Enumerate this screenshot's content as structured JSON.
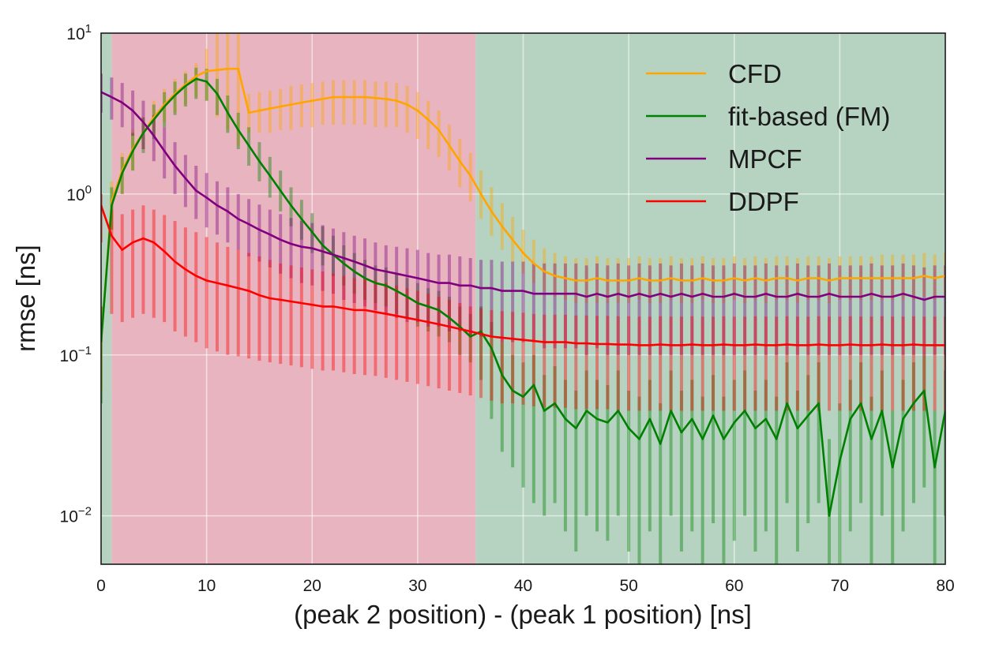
{
  "chart_data": {
    "type": "line",
    "title": "",
    "xlabel": "(peak 2 position) - (peak 1 position) [ns]",
    "ylabel": "rmse [ns]",
    "xscale": "linear",
    "yscale": "log",
    "xlim": [
      0,
      80
    ],
    "ylim": [
      0.005,
      10
    ],
    "grid": true,
    "x_ticks": [
      0,
      10,
      20,
      30,
      40,
      50,
      60,
      70,
      80
    ],
    "y_ticks": [
      {
        "value": 0.01,
        "base": "10",
        "exp": "−2"
      },
      {
        "value": 0.1,
        "base": "10",
        "exp": "−1"
      },
      {
        "value": 1,
        "base": "10",
        "exp": "0"
      },
      {
        "value": 10,
        "base": "10",
        "exp": "1"
      }
    ],
    "regions": [
      {
        "name": "pile-up-region",
        "x_start": 1,
        "x_end": 35.5,
        "color": "#e8b4bf"
      },
      {
        "name": "separated-region",
        "x_start": 35.5,
        "x_end": 80,
        "color": "#b5d3c0"
      },
      {
        "name": "initial-region",
        "x_start": 0,
        "x_end": 1,
        "color": "#b5d3c0"
      }
    ],
    "legend_position": "top-right",
    "legend": [
      "CFD",
      "fit-based (FM)",
      "MPCF",
      "DDPF"
    ],
    "x": [
      0,
      1,
      2,
      3,
      4,
      5,
      6,
      7,
      8,
      9,
      10,
      11,
      12,
      13,
      14,
      15,
      16,
      17,
      18,
      19,
      20,
      21,
      22,
      23,
      24,
      25,
      26,
      27,
      28,
      29,
      30,
      31,
      32,
      33,
      34,
      35,
      36,
      37,
      38,
      39,
      40,
      41,
      42,
      43,
      44,
      45,
      46,
      47,
      48,
      49,
      50,
      51,
      52,
      53,
      54,
      55,
      56,
      57,
      58,
      59,
      60,
      61,
      62,
      63,
      64,
      65,
      66,
      67,
      68,
      69,
      70,
      71,
      72,
      73,
      74,
      75,
      76,
      77,
      78,
      79,
      80
    ],
    "series": [
      {
        "name": "CFD",
        "color": "#ffa500",
        "values": [
          0.12,
          0.9,
          1.4,
          1.9,
          2.4,
          3.0,
          3.6,
          4.2,
          4.8,
          5.4,
          5.8,
          5.9,
          6.0,
          6.0,
          3.2,
          3.3,
          3.4,
          3.5,
          3.6,
          3.7,
          3.8,
          3.9,
          4.0,
          4.0,
          4.0,
          4.0,
          3.95,
          3.9,
          3.8,
          3.6,
          3.3,
          2.9,
          2.5,
          2.0,
          1.6,
          1.3,
          1.0,
          0.78,
          0.63,
          0.52,
          0.43,
          0.37,
          0.33,
          0.31,
          0.3,
          0.29,
          0.29,
          0.3,
          0.29,
          0.29,
          0.29,
          0.3,
          0.29,
          0.29,
          0.3,
          0.29,
          0.29,
          0.3,
          0.29,
          0.29,
          0.3,
          0.29,
          0.3,
          0.29,
          0.3,
          0.3,
          0.29,
          0.3,
          0.3,
          0.29,
          0.3,
          0.3,
          0.3,
          0.3,
          0.3,
          0.3,
          0.3,
          0.3,
          0.31,
          0.3,
          0.31
        ],
        "err_low": [
          0.06,
          0.6,
          1.0,
          1.4,
          1.9,
          2.4,
          2.8,
          3.2,
          3.6,
          4.0,
          3.8,
          3.0,
          2.5,
          2.0,
          2.4,
          2.4,
          2.4,
          2.5,
          2.5,
          2.6,
          2.6,
          2.7,
          2.7,
          2.7,
          2.7,
          2.7,
          2.6,
          2.6,
          2.6,
          2.4,
          2.2,
          1.9,
          1.7,
          1.4,
          1.1,
          0.9,
          0.7,
          0.55,
          0.45,
          0.38,
          0.32,
          0.28,
          0.25,
          0.23,
          0.22,
          0.21,
          0.21,
          0.21,
          0.21,
          0.21,
          0.21,
          0.22,
          0.21,
          0.21,
          0.22,
          0.21,
          0.21,
          0.22,
          0.21,
          0.21,
          0.22,
          0.21,
          0.22,
          0.21,
          0.22,
          0.22,
          0.21,
          0.22,
          0.22,
          0.21,
          0.22,
          0.22,
          0.22,
          0.22,
          0.22,
          0.22,
          0.22,
          0.22,
          0.23,
          0.22,
          0.23
        ],
        "err_high": [
          0.2,
          1.2,
          1.8,
          2.5,
          3.0,
          3.8,
          4.5,
          5.2,
          5.8,
          6.5,
          8.0,
          10.0,
          10.0,
          10.0,
          4.2,
          4.3,
          4.4,
          4.5,
          4.7,
          4.8,
          4.9,
          5.0,
          5.1,
          5.1,
          5.1,
          5.1,
          5.0,
          5.0,
          4.9,
          4.7,
          4.3,
          3.8,
          3.3,
          2.7,
          2.2,
          1.8,
          1.4,
          1.1,
          0.88,
          0.72,
          0.6,
          0.52,
          0.46,
          0.43,
          0.41,
          0.4,
          0.4,
          0.41,
          0.4,
          0.4,
          0.4,
          0.41,
          0.4,
          0.4,
          0.41,
          0.4,
          0.4,
          0.41,
          0.4,
          0.4,
          0.41,
          0.4,
          0.41,
          0.4,
          0.41,
          0.41,
          0.4,
          0.41,
          0.41,
          0.4,
          0.41,
          0.41,
          0.41,
          0.41,
          0.42,
          0.42,
          0.42,
          0.42,
          0.43,
          0.42,
          0.43
        ]
      },
      {
        "name": "fit-based (FM)",
        "color": "#008000",
        "values": [
          0.12,
          0.85,
          1.35,
          1.85,
          2.4,
          2.9,
          3.5,
          4.1,
          4.7,
          5.2,
          5.0,
          4.2,
          3.2,
          2.5,
          2.0,
          1.6,
          1.3,
          1.05,
          0.85,
          0.7,
          0.58,
          0.48,
          0.42,
          0.37,
          0.33,
          0.3,
          0.28,
          0.27,
          0.25,
          0.23,
          0.21,
          0.2,
          0.19,
          0.17,
          0.15,
          0.13,
          0.14,
          0.11,
          0.075,
          0.06,
          0.055,
          0.065,
          0.045,
          0.05,
          0.04,
          0.035,
          0.045,
          0.04,
          0.038,
          0.045,
          0.035,
          0.03,
          0.04,
          0.028,
          0.045,
          0.033,
          0.04,
          0.03,
          0.042,
          0.03,
          0.038,
          0.045,
          0.035,
          0.04,
          0.03,
          0.05,
          0.035,
          0.042,
          0.05,
          0.01,
          0.022,
          0.04,
          0.05,
          0.03,
          0.045,
          0.02,
          0.04,
          0.05,
          0.06,
          0.02,
          0.045
        ],
        "err_low": [
          0.05,
          0.6,
          1.0,
          1.4,
          1.8,
          2.2,
          2.6,
          3.1,
          3.5,
          3.9,
          3.8,
          3.1,
          2.4,
          1.9,
          1.5,
          1.2,
          0.95,
          0.78,
          0.63,
          0.52,
          0.43,
          0.36,
          0.31,
          0.27,
          0.24,
          0.22,
          0.21,
          0.2,
          0.18,
          0.17,
          0.15,
          0.14,
          0.13,
          0.12,
          0.1,
          0.09,
          0.07,
          0.04,
          0.025,
          0.02,
          0.015,
          0.012,
          0.01,
          0.012,
          0.008,
          0.006,
          0.01,
          0.008,
          0.007,
          0.01,
          0.006,
          0.005,
          0.008,
          0.005,
          0.01,
          0.006,
          0.008,
          0.005,
          0.009,
          0.005,
          0.007,
          0.01,
          0.006,
          0.008,
          0.005,
          0.012,
          0.006,
          0.009,
          0.012,
          0.005,
          0.005,
          0.008,
          0.012,
          0.005,
          0.01,
          0.005,
          0.008,
          0.012,
          0.015,
          0.005,
          0.01
        ],
        "err_high": [
          0.2,
          1.1,
          1.7,
          2.4,
          3.0,
          3.6,
          4.3,
          5.0,
          5.6,
          6.1,
          6.0,
          5.2,
          4.1,
          3.2,
          2.6,
          2.1,
          1.7,
          1.4,
          1.1,
          0.92,
          0.76,
          0.63,
          0.55,
          0.48,
          0.43,
          0.39,
          0.36,
          0.35,
          0.32,
          0.3,
          0.28,
          0.26,
          0.25,
          0.23,
          0.2,
          0.18,
          0.2,
          0.16,
          0.12,
          0.1,
          0.09,
          0.1,
          0.075,
          0.085,
          0.07,
          0.06,
          0.08,
          0.07,
          0.065,
          0.08,
          0.06,
          0.055,
          0.07,
          0.05,
          0.08,
          0.06,
          0.07,
          0.055,
          0.075,
          0.055,
          0.07,
          0.08,
          0.06,
          0.07,
          0.055,
          0.09,
          0.06,
          0.075,
          0.09,
          0.03,
          0.05,
          0.07,
          0.09,
          0.055,
          0.08,
          0.045,
          0.07,
          0.09,
          0.1,
          0.045,
          0.08
        ]
      },
      {
        "name": "MPCF",
        "color": "#800080",
        "values": [
          4.3,
          4.0,
          3.7,
          3.3,
          2.8,
          2.3,
          1.85,
          1.5,
          1.25,
          1.05,
          0.95,
          0.85,
          0.78,
          0.7,
          0.65,
          0.6,
          0.56,
          0.52,
          0.49,
          0.47,
          0.46,
          0.44,
          0.42,
          0.4,
          0.38,
          0.36,
          0.34,
          0.33,
          0.32,
          0.31,
          0.3,
          0.29,
          0.28,
          0.28,
          0.27,
          0.27,
          0.26,
          0.26,
          0.25,
          0.25,
          0.25,
          0.24,
          0.24,
          0.24,
          0.24,
          0.24,
          0.23,
          0.24,
          0.23,
          0.24,
          0.23,
          0.24,
          0.23,
          0.24,
          0.23,
          0.24,
          0.23,
          0.24,
          0.23,
          0.23,
          0.24,
          0.23,
          0.23,
          0.24,
          0.23,
          0.23,
          0.24,
          0.23,
          0.23,
          0.24,
          0.23,
          0.23,
          0.23,
          0.24,
          0.23,
          0.23,
          0.24,
          0.23,
          0.22,
          0.23,
          0.23
        ],
        "err_low": [
          3.2,
          2.9,
          2.6,
          2.3,
          1.9,
          1.6,
          1.25,
          1.0,
          0.83,
          0.7,
          0.62,
          0.56,
          0.5,
          0.45,
          0.41,
          0.38,
          0.35,
          0.32,
          0.3,
          0.28,
          0.27,
          0.25,
          0.24,
          0.22,
          0.21,
          0.2,
          0.19,
          0.18,
          0.17,
          0.16,
          0.16,
          0.15,
          0.15,
          0.14,
          0.14,
          0.13,
          0.13,
          0.13,
          0.12,
          0.12,
          0.12,
          0.12,
          0.11,
          0.11,
          0.11,
          0.11,
          0.1,
          0.11,
          0.1,
          0.1,
          0.1,
          0.1,
          0.1,
          0.1,
          0.1,
          0.1,
          0.1,
          0.1,
          0.1,
          0.1,
          0.1,
          0.1,
          0.1,
          0.1,
          0.1,
          0.1,
          0.1,
          0.1,
          0.1,
          0.1,
          0.1,
          0.1,
          0.1,
          0.1,
          0.1,
          0.1,
          0.1,
          0.1,
          0.1,
          0.1,
          0.1
        ],
        "err_high": [
          5.6,
          5.3,
          4.9,
          4.4,
          3.8,
          3.1,
          2.6,
          2.1,
          1.75,
          1.5,
          1.35,
          1.2,
          1.1,
          1.0,
          0.93,
          0.86,
          0.8,
          0.75,
          0.71,
          0.68,
          0.66,
          0.64,
          0.61,
          0.58,
          0.55,
          0.53,
          0.5,
          0.48,
          0.47,
          0.46,
          0.45,
          0.43,
          0.42,
          0.42,
          0.41,
          0.4,
          0.39,
          0.39,
          0.38,
          0.38,
          0.38,
          0.37,
          0.37,
          0.37,
          0.37,
          0.37,
          0.36,
          0.37,
          0.36,
          0.37,
          0.36,
          0.37,
          0.36,
          0.37,
          0.36,
          0.37,
          0.36,
          0.37,
          0.36,
          0.36,
          0.37,
          0.36,
          0.36,
          0.37,
          0.36,
          0.36,
          0.37,
          0.36,
          0.36,
          0.37,
          0.36,
          0.36,
          0.36,
          0.37,
          0.36,
          0.36,
          0.37,
          0.36,
          0.35,
          0.36,
          0.36
        ]
      },
      {
        "name": "DDPF",
        "color": "#ff0000",
        "values": [
          0.85,
          0.55,
          0.45,
          0.5,
          0.53,
          0.5,
          0.44,
          0.38,
          0.34,
          0.31,
          0.29,
          0.28,
          0.27,
          0.26,
          0.25,
          0.235,
          0.225,
          0.22,
          0.215,
          0.21,
          0.205,
          0.2,
          0.2,
          0.195,
          0.19,
          0.19,
          0.185,
          0.18,
          0.175,
          0.17,
          0.165,
          0.16,
          0.155,
          0.15,
          0.145,
          0.14,
          0.135,
          0.13,
          0.128,
          0.126,
          0.124,
          0.122,
          0.12,
          0.12,
          0.12,
          0.118,
          0.118,
          0.117,
          0.117,
          0.116,
          0.116,
          0.115,
          0.115,
          0.116,
          0.115,
          0.115,
          0.116,
          0.115,
          0.115,
          0.116,
          0.115,
          0.115,
          0.116,
          0.115,
          0.115,
          0.116,
          0.115,
          0.115,
          0.116,
          0.115,
          0.115,
          0.116,
          0.115,
          0.115,
          0.116,
          0.115,
          0.115,
          0.116,
          0.115,
          0.115,
          0.115
        ],
        "err_low": [
          0.5,
          0.18,
          0.16,
          0.17,
          0.18,
          0.17,
          0.16,
          0.14,
          0.13,
          0.12,
          0.11,
          0.105,
          0.1,
          0.098,
          0.095,
          0.092,
          0.09,
          0.088,
          0.086,
          0.084,
          0.082,
          0.08,
          0.08,
          0.078,
          0.076,
          0.075,
          0.074,
          0.072,
          0.07,
          0.068,
          0.066,
          0.064,
          0.062,
          0.06,
          0.058,
          0.056,
          0.054,
          0.052,
          0.05,
          0.05,
          0.049,
          0.048,
          0.047,
          0.047,
          0.047,
          0.046,
          0.046,
          0.046,
          0.046,
          0.045,
          0.045,
          0.045,
          0.045,
          0.045,
          0.045,
          0.045,
          0.045,
          0.045,
          0.045,
          0.045,
          0.045,
          0.045,
          0.045,
          0.045,
          0.045,
          0.045,
          0.045,
          0.045,
          0.045,
          0.045,
          0.045,
          0.045,
          0.045,
          0.045,
          0.045,
          0.045,
          0.045,
          0.045,
          0.045,
          0.045,
          0.045
        ],
        "err_high": [
          1.0,
          0.8,
          0.75,
          0.8,
          0.85,
          0.8,
          0.74,
          0.68,
          0.62,
          0.58,
          0.54,
          0.5,
          0.47,
          0.45,
          0.43,
          0.41,
          0.39,
          0.37,
          0.36,
          0.35,
          0.34,
          0.33,
          0.32,
          0.31,
          0.3,
          0.3,
          0.29,
          0.28,
          0.27,
          0.26,
          0.25,
          0.24,
          0.23,
          0.22,
          0.21,
          0.2,
          0.195,
          0.19,
          0.187,
          0.185,
          0.183,
          0.18,
          0.178,
          0.178,
          0.178,
          0.176,
          0.176,
          0.175,
          0.175,
          0.174,
          0.174,
          0.173,
          0.173,
          0.174,
          0.173,
          0.173,
          0.174,
          0.173,
          0.173,
          0.174,
          0.173,
          0.173,
          0.174,
          0.173,
          0.173,
          0.174,
          0.173,
          0.173,
          0.174,
          0.173,
          0.173,
          0.174,
          0.173,
          0.173,
          0.174,
          0.173,
          0.173,
          0.174,
          0.173,
          0.173,
          0.173
        ]
      }
    ]
  }
}
